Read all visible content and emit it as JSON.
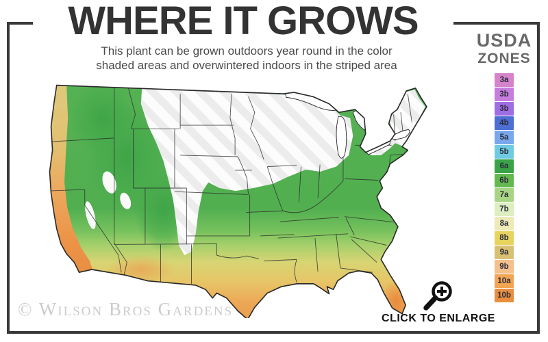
{
  "header": {
    "title": "WHERE IT GROWS",
    "subtitle_line1": "This plant can be grown outdoors year round in the color",
    "subtitle_line2": "shaded areas and overwintered indoors in the striped area"
  },
  "legend": {
    "title_line1": "USDA",
    "title_line2": "ZONES",
    "zones": [
      {
        "label": "3a",
        "color": "#d583cb"
      },
      {
        "label": "3b",
        "color": "#c77ddd"
      },
      {
        "label": "3b",
        "color": "#a06ee3"
      },
      {
        "label": "4b",
        "color": "#4d6ed3"
      },
      {
        "label": "5a",
        "color": "#79a7ec"
      },
      {
        "label": "5b",
        "color": "#6ecbe3"
      },
      {
        "label": "6a",
        "color": "#3aa347"
      },
      {
        "label": "6b",
        "color": "#63b94f"
      },
      {
        "label": "7a",
        "color": "#a8d584"
      },
      {
        "label": "7b",
        "color": "#ddeec0"
      },
      {
        "label": "8a",
        "color": "#eeeab8"
      },
      {
        "label": "8b",
        "color": "#e7d45e"
      },
      {
        "label": "9a",
        "color": "#d8c173"
      },
      {
        "label": "9b",
        "color": "#f4c08b"
      },
      {
        "label": "10a",
        "color": "#f2a654"
      },
      {
        "label": "10b",
        "color": "#e88f3f"
      }
    ]
  },
  "map": {
    "watermark": "© Wilson Bros Gardens",
    "colors": {
      "outdoor_green": "#4fae4e",
      "outdoor_yellow": "#e2d073",
      "outdoor_orange": "#ee9a49",
      "overwinter_stripe": "#ececec",
      "border": "#2b2b2b"
    }
  },
  "footer": {
    "enlarge_label": "CLICK TO ENLARGE"
  }
}
